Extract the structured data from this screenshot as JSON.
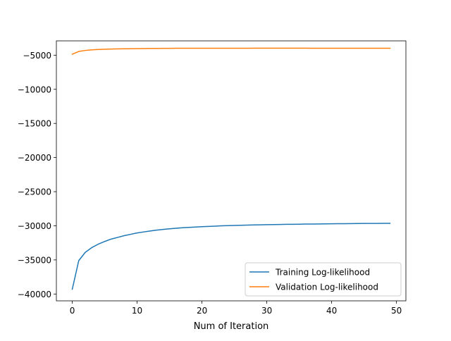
{
  "chart_data": {
    "type": "line",
    "title": "",
    "xlabel": "Num of Iteration",
    "ylabel": "",
    "xlim": [
      -2.45,
      51.45
    ],
    "ylim": [
      -41000,
      -2900
    ],
    "xticks": [
      0,
      10,
      20,
      30,
      40,
      50
    ],
    "yticks": [
      -40000,
      -35000,
      -30000,
      -25000,
      -20000,
      -15000,
      -10000,
      -5000
    ],
    "xtick_labels": [
      "0",
      "10",
      "20",
      "30",
      "40",
      "50"
    ],
    "ytick_labels": [
      "−40000",
      "−35000",
      "−30000",
      "−25000",
      "−20000",
      "−15000",
      "−10000",
      "−5000"
    ],
    "grid": false,
    "legend_position": "lower right",
    "x": [
      0,
      1,
      2,
      3,
      4,
      5,
      6,
      7,
      8,
      9,
      10,
      11,
      12,
      13,
      14,
      15,
      16,
      17,
      18,
      19,
      20,
      21,
      22,
      23,
      24,
      25,
      26,
      27,
      28,
      29,
      30,
      31,
      32,
      33,
      34,
      35,
      36,
      37,
      38,
      39,
      40,
      41,
      42,
      43,
      44,
      45,
      46,
      47,
      48,
      49
    ],
    "series": [
      {
        "name": "Training Log-likelihood",
        "color": "#1f77b4",
        "values": [
          -39300,
          -35100,
          -33900,
          -33200,
          -32700,
          -32300,
          -31950,
          -31700,
          -31450,
          -31250,
          -31050,
          -30900,
          -30760,
          -30640,
          -30530,
          -30440,
          -30360,
          -30290,
          -30230,
          -30180,
          -30130,
          -30090,
          -30050,
          -30010,
          -29980,
          -29950,
          -29920,
          -29900,
          -29880,
          -29860,
          -29840,
          -29820,
          -29810,
          -29790,
          -29780,
          -29770,
          -29750,
          -29740,
          -29730,
          -29720,
          -29710,
          -29700,
          -29690,
          -29680,
          -29670,
          -29660,
          -29655,
          -29650,
          -29645,
          -29640
        ]
      },
      {
        "name": "Validation Log-likelihood",
        "color": "#ff7f0e",
        "values": [
          -4850,
          -4450,
          -4300,
          -4220,
          -4170,
          -4130,
          -4100,
          -4080,
          -4060,
          -4045,
          -4030,
          -4020,
          -4010,
          -4005,
          -4000,
          -3995,
          -3990,
          -3987,
          -3985,
          -3983,
          -3982,
          -3981,
          -3980,
          -3979,
          -3979,
          -3978,
          -3978,
          -3978,
          -3977,
          -3977,
          -3977,
          -3977,
          -3977,
          -3977,
          -3977,
          -3977,
          -3977,
          -3978,
          -3978,
          -3978,
          -3978,
          -3979,
          -3979,
          -3979,
          -3980,
          -3980,
          -3980,
          -3981,
          -3981,
          -3981
        ]
      }
    ]
  }
}
